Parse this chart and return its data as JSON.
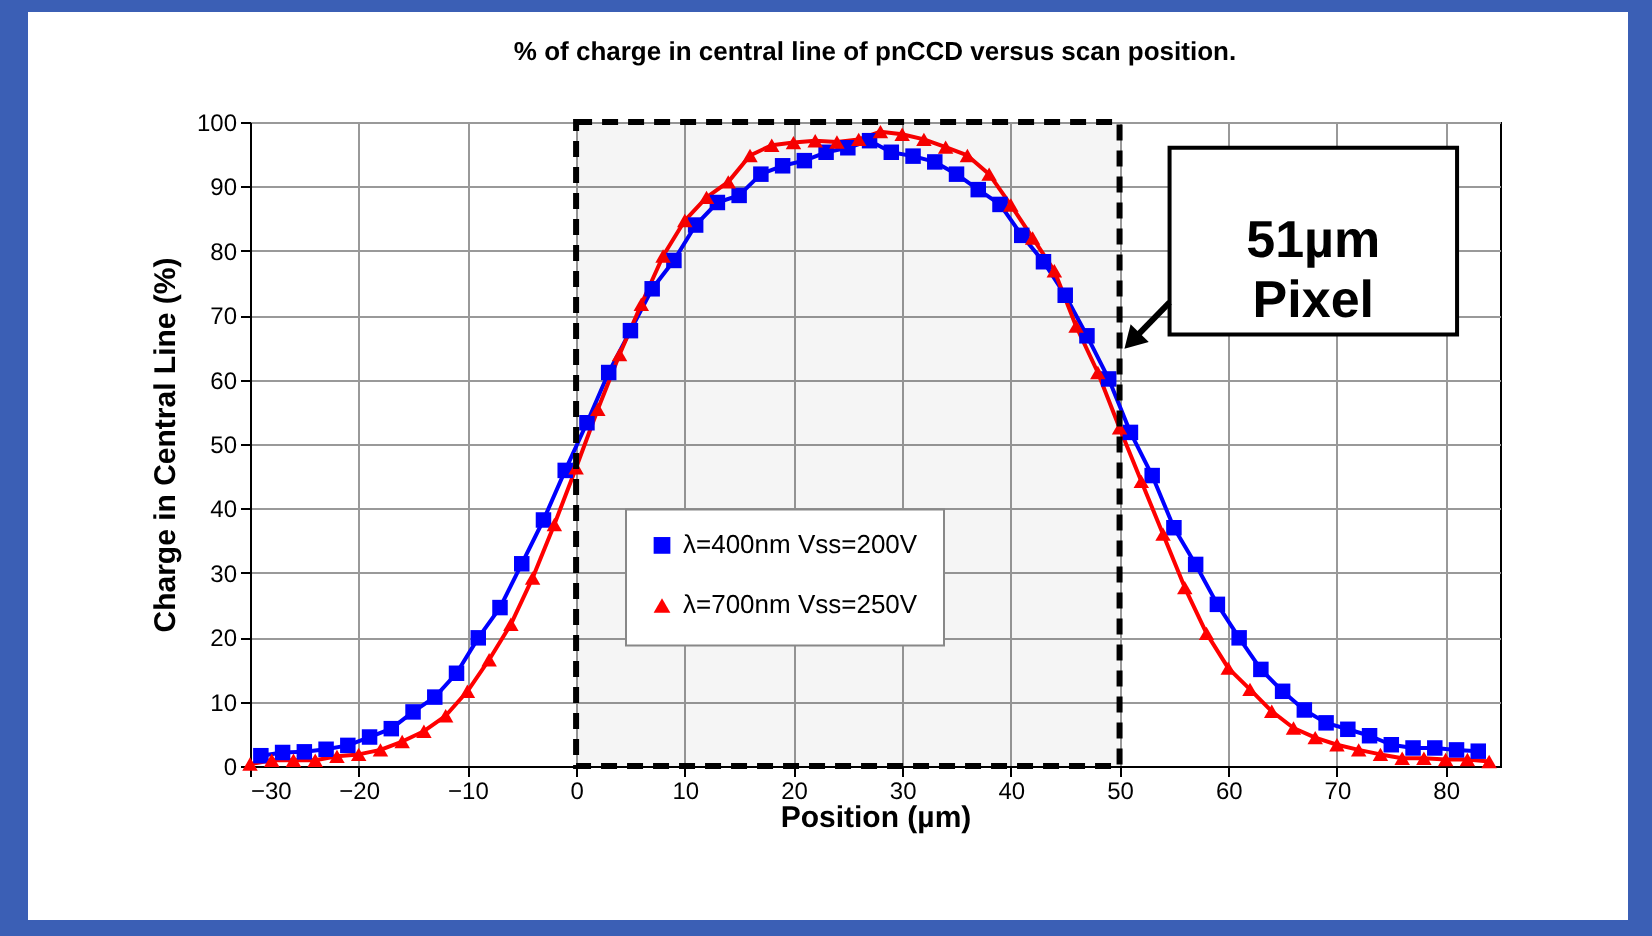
{
  "chart_data": {
    "type": "line",
    "title": "% of charge in central line of pnCCD versus scan position.",
    "xlabel": "Position (µm)",
    "ylabel": "Charge in Central Line (%)",
    "xlim": [
      -30,
      85
    ],
    "xticks": [
      -30,
      -20,
      -10,
      0,
      10,
      20,
      30,
      40,
      50,
      60,
      70,
      80
    ],
    "ylim": [
      0,
      100
    ],
    "yticks": [
      0,
      10,
      20,
      30,
      40,
      50,
      60,
      70,
      80,
      90,
      100
    ],
    "grid": true,
    "legend": "bottom",
    "line_style": "solid",
    "series": [
      {
        "name": "λ=400nm Vss=200V",
        "color": "#0000ff",
        "marker": "square",
        "x": [
          -29,
          -27,
          -25,
          -23,
          -21,
          -19,
          -17,
          -15,
          -13,
          -11,
          -9,
          -7,
          -5,
          -3,
          -1,
          1,
          3,
          5,
          7,
          9,
          11,
          13,
          15,
          17,
          19,
          21,
          23,
          25,
          27,
          29,
          31,
          33,
          35,
          37,
          39,
          41,
          43,
          45,
          47,
          49,
          51,
          53,
          55,
          57,
          59,
          61,
          63,
          65,
          67,
          69,
          71,
          73,
          75,
          77,
          79,
          81,
          83
        ],
        "values": [
          1.6,
          2.1,
          2.2,
          2.6,
          3.2,
          4.5,
          5.8,
          8.4,
          10.7,
          14.4,
          19.9,
          24.6,
          31.4,
          38.2,
          45.9,
          53.3,
          61.1,
          67.6,
          74.1,
          78.5,
          84.0,
          87.5,
          88.6,
          91.9,
          93.2,
          94.0,
          95.3,
          96.0,
          97.1,
          95.3,
          94.7,
          93.8,
          91.9,
          89.5,
          87.2,
          82.4,
          78.3,
          73.1,
          66.8,
          60.1,
          51.8,
          45.1,
          37.0,
          31.3,
          25.1,
          19.9,
          15.0,
          11.6,
          8.7,
          6.7,
          5.7,
          4.7,
          3.3,
          2.8,
          2.8,
          2.5,
          2.3
        ]
      },
      {
        "name": "λ=700nm Vss=250V",
        "color": "#ff0000",
        "marker": "triangle",
        "x": [
          -30,
          -28,
          -26,
          -24,
          -22,
          -20,
          -18,
          -16,
          -14,
          -12,
          -10,
          -8,
          -6,
          -4,
          -2,
          0,
          2,
          4,
          6,
          8,
          10,
          12,
          14,
          16,
          18,
          20,
          22,
          24,
          26,
          28,
          30,
          32,
          34,
          36,
          38,
          40,
          42,
          44,
          46,
          48,
          50,
          52,
          54,
          56,
          58,
          60,
          62,
          64,
          66,
          68,
          70,
          72,
          74,
          76,
          78,
          80,
          82,
          84
        ],
        "values": [
          0.3,
          0.9,
          0.9,
          0.9,
          1.5,
          1.8,
          2.5,
          3.8,
          5.4,
          7.8,
          11.6,
          16.5,
          22.0,
          29.2,
          37.5,
          46.3,
          55.4,
          63.9,
          71.7,
          79.2,
          84.7,
          88.3,
          90.7,
          94.8,
          96.4,
          96.8,
          97.1,
          96.9,
          97.3,
          98.5,
          98.1,
          97.3,
          96.1,
          94.8,
          91.9,
          87.1,
          82.0,
          76.9,
          68.3,
          61.1,
          52.5,
          44.2,
          36.0,
          27.7,
          20.6,
          15.2,
          11.9,
          8.5,
          5.9,
          4.4,
          3.3,
          2.5,
          1.8,
          1.2,
          1.2,
          1.0,
          1.0,
          0.7
        ]
      }
    ],
    "bands": [
      {
        "axis": "x",
        "from": 0,
        "to": 50,
        "label": "51µm Pixel",
        "color": "#000000"
      }
    ]
  }
}
